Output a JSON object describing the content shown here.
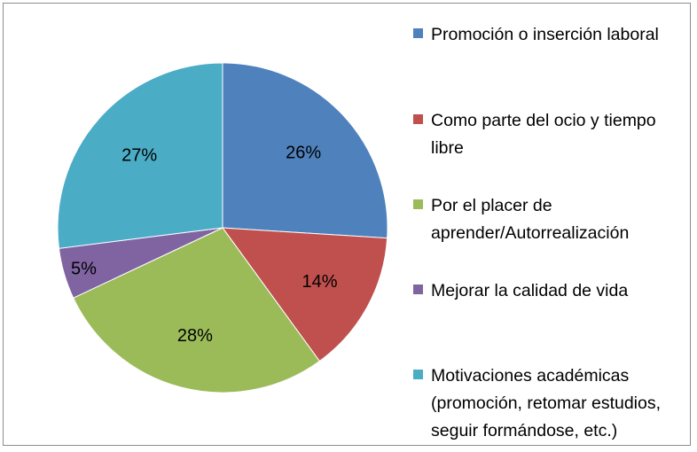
{
  "chart_data": {
    "type": "pie",
    "title": "",
    "categories": [
      "Promoción o inserción laboral",
      "Como parte del ocio y tiempo libre",
      "Por el placer de aprender/Autorrealización",
      "Mejorar la calidad de vida",
      "Motivaciones académicas (promoción, retomar estudios, seguir formándose, etc.)"
    ],
    "values": [
      26,
      14,
      28,
      5,
      27
    ],
    "value_labels": [
      "26%",
      "14%",
      "28%",
      "5%",
      "27%"
    ],
    "colors": [
      "#4f81bd",
      "#c0504d",
      "#9bbb59",
      "#8064a2",
      "#4bacc6"
    ],
    "start_angle_deg": 0,
    "direction": "clockwise",
    "legend_position": "right"
  }
}
